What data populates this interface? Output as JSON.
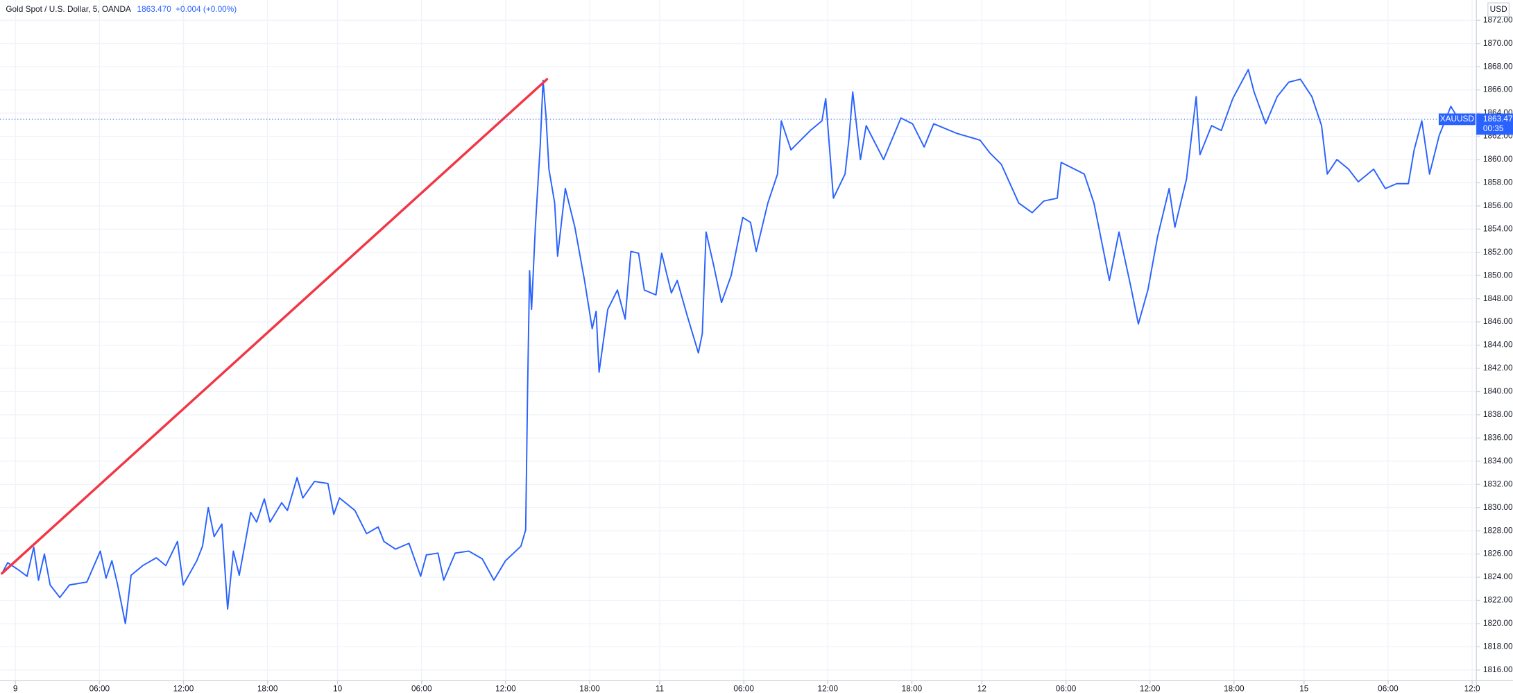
{
  "chart_data": {
    "type": "line",
    "title": "Gold Spot / U.S. Dollar, 5, OANDA",
    "price": "1863.470",
    "change": "+0.004 (+0.00%)",
    "currency": "USD",
    "grid": true,
    "xlim": [
      -1.1,
      104.3
    ],
    "ylim": [
      1815.1,
      1873.75
    ],
    "xticks": [
      {
        "value": 0,
        "label": "9"
      },
      {
        "value": 6,
        "label": "06:00"
      },
      {
        "value": 12,
        "label": "12:00"
      },
      {
        "value": 18,
        "label": "18:00"
      },
      {
        "value": 23,
        "label": "10"
      },
      {
        "value": 29,
        "label": "06:00"
      },
      {
        "value": 35,
        "label": "12:00"
      },
      {
        "value": 41,
        "label": "18:00"
      },
      {
        "value": 46,
        "label": "11"
      },
      {
        "value": 52,
        "label": "06:00"
      },
      {
        "value": 58,
        "label": "12:00"
      },
      {
        "value": 64,
        "label": "18:00"
      },
      {
        "value": 69,
        "label": "12"
      },
      {
        "value": 75,
        "label": "06:00"
      },
      {
        "value": 81,
        "label": "12:00"
      },
      {
        "value": 87,
        "label": "18:00"
      },
      {
        "value": 92,
        "label": "15"
      },
      {
        "value": 98,
        "label": "06:00"
      },
      {
        "value": 104,
        "label": "12:0"
      }
    ],
    "yticks": [
      {
        "value": 1816,
        "label": "1816.00"
      },
      {
        "value": 1818,
        "label": "1818.00"
      },
      {
        "value": 1820,
        "label": "1820.00"
      },
      {
        "value": 1822,
        "label": "1822.00"
      },
      {
        "value": 1824,
        "label": "1824.00"
      },
      {
        "value": 1826,
        "label": "1826.00"
      },
      {
        "value": 1828,
        "label": "1828.00"
      },
      {
        "value": 1830,
        "label": "1830.00"
      },
      {
        "value": 1832,
        "label": "1832.00"
      },
      {
        "value": 1834,
        "label": "1834.00"
      },
      {
        "value": 1836,
        "label": "1836.00"
      },
      {
        "value": 1838,
        "label": "1838.00"
      },
      {
        "value": 1840,
        "label": "1840.00"
      },
      {
        "value": 1842,
        "label": "1842.00"
      },
      {
        "value": 1844,
        "label": "1844.00"
      },
      {
        "value": 1846,
        "label": "1846.00"
      },
      {
        "value": 1848,
        "label": "1848.00"
      },
      {
        "value": 1850,
        "label": "1850.00"
      },
      {
        "value": 1852,
        "label": "1852.00"
      },
      {
        "value": 1854,
        "label": "1854.00"
      },
      {
        "value": 1856,
        "label": "1856.00"
      },
      {
        "value": 1858,
        "label": "1858.00"
      },
      {
        "value": 1860,
        "label": "1860.00"
      },
      {
        "value": 1862,
        "label": "1862.00"
      },
      {
        "value": 1864,
        "label": "1864.00"
      },
      {
        "value": 1866,
        "label": "1866.00"
      },
      {
        "value": 1868,
        "label": "1868.00"
      },
      {
        "value": 1870,
        "label": "1870.00"
      },
      {
        "value": 1872,
        "label": "1872.00"
      }
    ],
    "series": [
      {
        "color": "#2962ff",
        "x": [
          -0.96,
          -0.55,
          0.28,
          0.83,
          1.31,
          1.65,
          2.07,
          2.48,
          3.17,
          3.86,
          5.1,
          6.06,
          6.47,
          6.89,
          7.3,
          7.85,
          8.26,
          9.09,
          10.06,
          10.74,
          11.57,
          11.98,
          12.95,
          13.36,
          13.77,
          14.19,
          14.74,
          15.15,
          15.56,
          15.98,
          16.8,
          17.22,
          17.77,
          18.18,
          19.01,
          19.42,
          20.11,
          20.52,
          21.35,
          22.31,
          22.73,
          23.14,
          24.24,
          25.07,
          25.9,
          26.31,
          27.13,
          28.1,
          28.93,
          29.34,
          30.17,
          30.58,
          31.4,
          32.37,
          33.33,
          34.16,
          34.99,
          36.09,
          36.43,
          36.57,
          36.71,
          36.85,
          37.12,
          37.47,
          37.67,
          37.88,
          38.09,
          38.5,
          38.71,
          39.26,
          39.94,
          40.63,
          41.18,
          41.46,
          41.67,
          42.29,
          42.98,
          43.53,
          43.94,
          44.49,
          44.9,
          45.73,
          46.14,
          46.83,
          47.25,
          47.93,
          48.76,
          49.04,
          49.31,
          49.86,
          50.41,
          51.1,
          51.93,
          52.48,
          52.89,
          53.72,
          54.41,
          54.68,
          55.37,
          56.75,
          57.58,
          57.85,
          58.4,
          59.23,
          59.5,
          59.78,
          60.33,
          60.74,
          61.98,
          63.22,
          64.05,
          64.88,
          65.56,
          67.22,
          68.87,
          69.56,
          70.39,
          71.63,
          72.59,
          73.42,
          74.38,
          74.66,
          76.31,
          77.0,
          77.69,
          78.1,
          78.79,
          79.61,
          80.17,
          80.85,
          81.54,
          82.37,
          82.78,
          83.61,
          84.3,
          84.57,
          85.4,
          86.09,
          86.91,
          88.02,
          88.43,
          89.26,
          90.08,
          90.91,
          91.74,
          92.56,
          93.25,
          93.66,
          94.35,
          95.18,
          95.87,
          96.97,
          97.8,
          98.62,
          99.45,
          99.86,
          100.41,
          100.96,
          101.65,
          102.48,
          103.03
        ],
        "values": [
          1824.33,
          1825.25,
          1824.58,
          1824.08,
          1826.58,
          1823.75,
          1826.0,
          1823.33,
          1822.25,
          1823.33,
          1823.58,
          1826.25,
          1823.92,
          1825.42,
          1823.33,
          1820.0,
          1824.17,
          1825.0,
          1825.67,
          1825.0,
          1827.08,
          1823.33,
          1825.42,
          1826.67,
          1830.0,
          1827.5,
          1828.58,
          1821.25,
          1826.25,
          1824.17,
          1829.58,
          1828.75,
          1830.75,
          1828.75,
          1830.42,
          1829.75,
          1832.58,
          1830.83,
          1832.25,
          1832.08,
          1829.42,
          1830.83,
          1829.75,
          1827.75,
          1828.33,
          1827.08,
          1826.42,
          1826.92,
          1824.08,
          1825.92,
          1826.08,
          1823.75,
          1826.08,
          1826.25,
          1825.58,
          1823.75,
          1825.42,
          1826.67,
          1828.08,
          1840.42,
          1850.42,
          1847.08,
          1854.17,
          1861.25,
          1866.83,
          1863.75,
          1859.17,
          1856.25,
          1851.67,
          1857.5,
          1854.17,
          1849.58,
          1845.42,
          1846.92,
          1841.67,
          1847.08,
          1848.75,
          1846.25,
          1852.08,
          1851.92,
          1848.75,
          1848.33,
          1851.92,
          1848.5,
          1849.58,
          1846.67,
          1843.33,
          1845.0,
          1853.75,
          1850.83,
          1847.67,
          1850.0,
          1855.0,
          1854.58,
          1852.08,
          1856.25,
          1858.75,
          1863.33,
          1860.83,
          1862.5,
          1863.33,
          1865.25,
          1856.67,
          1858.75,
          1861.67,
          1865.83,
          1860.0,
          1862.92,
          1860.0,
          1863.58,
          1863.08,
          1861.08,
          1863.08,
          1862.25,
          1861.67,
          1860.58,
          1859.58,
          1856.25,
          1855.42,
          1856.42,
          1856.67,
          1859.75,
          1858.75,
          1856.25,
          1852.08,
          1849.58,
          1853.75,
          1849.17,
          1845.83,
          1848.75,
          1853.33,
          1857.5,
          1854.17,
          1858.33,
          1865.42,
          1860.42,
          1862.92,
          1862.5,
          1865.25,
          1867.75,
          1865.83,
          1863.08,
          1865.42,
          1866.67,
          1866.92,
          1865.42,
          1862.92,
          1858.75,
          1860.0,
          1859.17,
          1858.08,
          1859.17,
          1857.5,
          1857.92,
          1857.92,
          1860.83,
          1863.33,
          1858.75,
          1862.08,
          1864.58,
          1863.47
        ]
      }
    ],
    "trend_line": {
      "color": "#f23645",
      "x": [
        -0.96,
        37.95
      ],
      "values": [
        1824.33,
        1866.92
      ]
    },
    "price_tag": {
      "symbol": "XAUUSD",
      "value": 1863.47,
      "label": "1863.47",
      "countdown": "00:35",
      "color": "#2962ff"
    }
  }
}
